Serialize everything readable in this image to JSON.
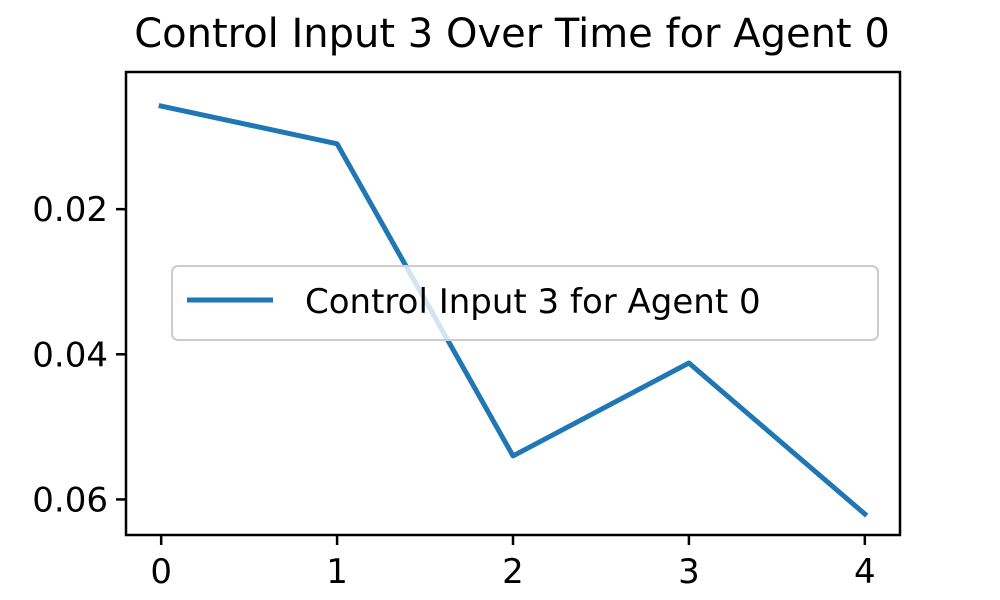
{
  "chart_data": {
    "type": "line",
    "title": "Control Input 3 Over Time for Agent 0",
    "xlabel": "",
    "ylabel": "",
    "x": [
      0,
      1,
      2,
      3,
      4
    ],
    "series": [
      {
        "name": "Control Input 3 for Agent 0",
        "color": "#1f77b4",
        "values": [
          0.0058,
          0.011,
          0.054,
          0.0412,
          0.062
        ]
      }
    ],
    "xticks": [
      0,
      1,
      2,
      3,
      4
    ],
    "xtick_labels": [
      "0",
      "1",
      "2",
      "3",
      "4"
    ],
    "yticks": [
      0.02,
      0.04,
      0.06
    ],
    "ytick_labels": [
      "0.02",
      "0.04",
      "0.06"
    ],
    "xlim": [
      -0.2,
      4.2
    ],
    "ylim": [
      0.0649,
      0.0011
    ],
    "y_inverted": true,
    "grid": false,
    "legend_position": "center-right"
  }
}
